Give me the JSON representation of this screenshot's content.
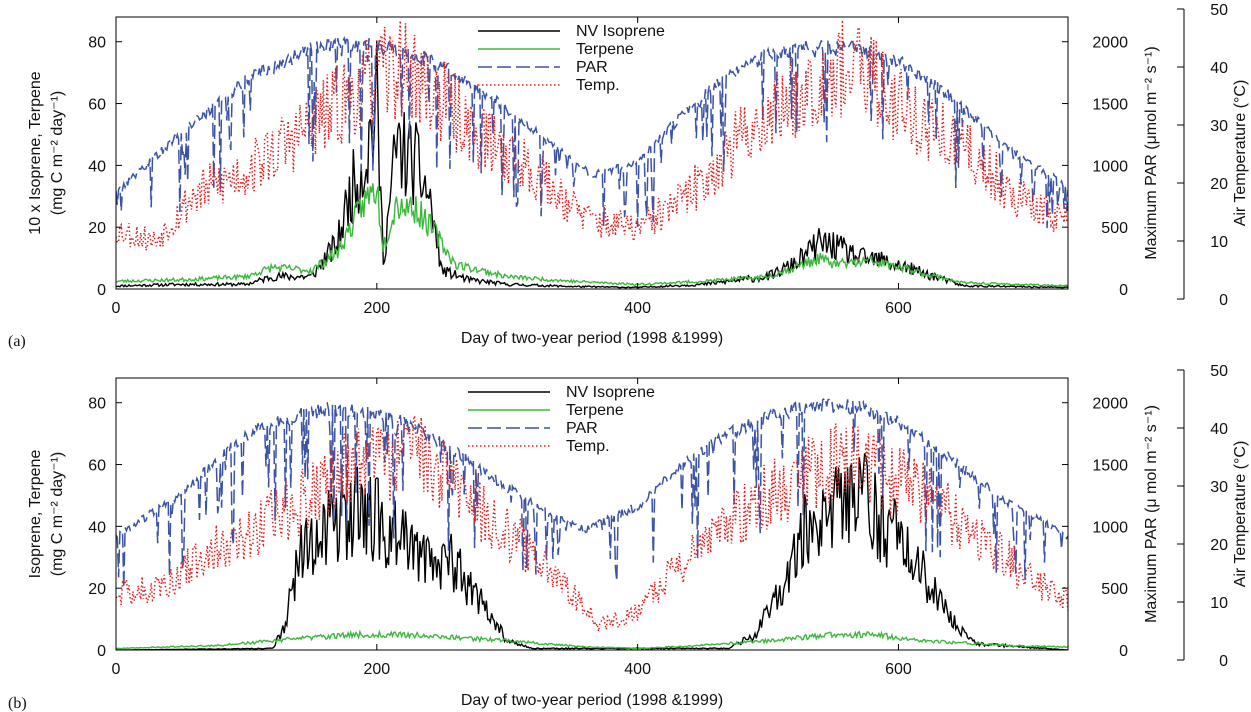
{
  "chart_data": [
    {
      "id": "a",
      "type": "line",
      "panel_label": "(a)",
      "xlabel": "Day of two-year period (1998 &1999)",
      "xlim": [
        0,
        730
      ],
      "xticks": [
        0,
        200,
        400,
        600
      ],
      "ylabel_lines": [
        "10 x Isoprene, Terpene",
        "(mg C m⁻² day⁻¹)"
      ],
      "ylim": [
        0,
        88
      ],
      "yticks": [
        0,
        20,
        40,
        60,
        80
      ],
      "y2label": "Maximum PAR (μmol m⁻² s⁻¹)",
      "y2lim": [
        0,
        2200
      ],
      "y2ticks": [
        0,
        500,
        1000,
        1500,
        2000
      ],
      "y3label": "Air Temperature (°C)",
      "y3lim": [
        0,
        50
      ],
      "y3ticks": [
        0,
        10,
        20,
        30,
        40,
        50
      ],
      "legend_position": "top-center",
      "series": [
        {
          "name": "NV Isoprene",
          "axis": "left",
          "color": "#000000",
          "points": [
            [
              0,
              1
            ],
            [
              50,
              1.5
            ],
            [
              100,
              1.5
            ],
            [
              120,
              4
            ],
            [
              150,
              4
            ],
            [
              170,
              15
            ],
            [
              180,
              32
            ],
            [
              190,
              40
            ],
            [
              200,
              60
            ],
            [
              205,
              10
            ],
            [
              215,
              46
            ],
            [
              230,
              40
            ],
            [
              240,
              30
            ],
            [
              250,
              6
            ],
            [
              270,
              3
            ],
            [
              300,
              1.5
            ],
            [
              350,
              0.8
            ],
            [
              400,
              0.5
            ],
            [
              450,
              1.5
            ],
            [
              500,
              4
            ],
            [
              520,
              8
            ],
            [
              540,
              15
            ],
            [
              550,
              14
            ],
            [
              570,
              10
            ],
            [
              590,
              9
            ],
            [
              620,
              5
            ],
            [
              650,
              1
            ],
            [
              730,
              0.5
            ]
          ]
        },
        {
          "name": "Terpene",
          "axis": "left",
          "color": "#3cb83c",
          "points": [
            [
              0,
              2.5
            ],
            [
              50,
              3
            ],
            [
              100,
              4
            ],
            [
              120,
              7
            ],
            [
              150,
              6
            ],
            [
              170,
              12
            ],
            [
              190,
              28
            ],
            [
              200,
              33
            ],
            [
              205,
              14
            ],
            [
              215,
              28
            ],
            [
              230,
              26
            ],
            [
              245,
              18
            ],
            [
              260,
              8
            ],
            [
              300,
              4
            ],
            [
              350,
              2.5
            ],
            [
              400,
              1.5
            ],
            [
              450,
              2.5
            ],
            [
              500,
              4
            ],
            [
              520,
              7
            ],
            [
              540,
              10
            ],
            [
              550,
              8
            ],
            [
              580,
              9
            ],
            [
              620,
              5
            ],
            [
              650,
              2
            ],
            [
              730,
              1
            ]
          ]
        },
        {
          "name": "PAR",
          "axis": "right",
          "color": "#3a53a4",
          "points": [
            [
              0,
              800
            ],
            [
              50,
              1300
            ],
            [
              100,
              1750
            ],
            [
              150,
              2000
            ],
            [
              180,
              2050
            ],
            [
              200,
              2030
            ],
            [
              230,
              1950
            ],
            [
              260,
              1800
            ],
            [
              300,
              1500
            ],
            [
              340,
              1150
            ],
            [
              365,
              950
            ],
            [
              400,
              1050
            ],
            [
              430,
              1400
            ],
            [
              460,
              1700
            ],
            [
              500,
              1950
            ],
            [
              540,
              2030
            ],
            [
              570,
              2000
            ],
            [
              600,
              1900
            ],
            [
              640,
              1600
            ],
            [
              680,
              1200
            ],
            [
              730,
              850
            ]
          ]
        },
        {
          "name": "Temp.",
          "axis": "right2",
          "color": "#e02020",
          "points": [
            [
              0,
              12
            ],
            [
              30,
              10
            ],
            [
              60,
              18
            ],
            [
              100,
              22
            ],
            [
              150,
              30
            ],
            [
              180,
              35
            ],
            [
              200,
              38
            ],
            [
              220,
              40
            ],
            [
              250,
              34
            ],
            [
              280,
              28
            ],
            [
              320,
              22
            ],
            [
              360,
              14
            ],
            [
              400,
              12
            ],
            [
              440,
              18
            ],
            [
              480,
              28
            ],
            [
              520,
              35
            ],
            [
              550,
              40
            ],
            [
              580,
              38
            ],
            [
              620,
              30
            ],
            [
              660,
              24
            ],
            [
              700,
              16
            ],
            [
              730,
              14
            ]
          ]
        }
      ]
    },
    {
      "id": "b",
      "type": "line",
      "panel_label": "(b)",
      "xlabel": "Day of two-year period (1998 &1999)",
      "xlim": [
        0,
        730
      ],
      "xticks": [
        0,
        200,
        400,
        600
      ],
      "ylabel_lines": [
        "Isoprene, Terpene",
        "(mg C m⁻² day⁻¹)"
      ],
      "ylim": [
        0,
        88
      ],
      "yticks": [
        0,
        20,
        40,
        60,
        80
      ],
      "y2label": "Maximum PAR (μ mol m⁻² s⁻¹)",
      "y2lim": [
        0,
        2200
      ],
      "y2ticks": [
        0,
        500,
        1000,
        1500,
        2000
      ],
      "y3label": "Air Temperature (°C)",
      "y3lim": [
        0,
        50
      ],
      "y3ticks": [
        0,
        10,
        20,
        30,
        40,
        50
      ],
      "legend_position": "top-center",
      "series": [
        {
          "name": "NV Isoprene",
          "axis": "left",
          "color": "#000000",
          "points": [
            [
              0,
              0
            ],
            [
              120,
              0.5
            ],
            [
              130,
              8
            ],
            [
              140,
              30
            ],
            [
              160,
              40
            ],
            [
              180,
              45
            ],
            [
              200,
              42
            ],
            [
              220,
              35
            ],
            [
              240,
              30
            ],
            [
              260,
              28
            ],
            [
              280,
              15
            ],
            [
              300,
              3
            ],
            [
              320,
              0.5
            ],
            [
              470,
              0.5
            ],
            [
              490,
              5
            ],
            [
              510,
              20
            ],
            [
              530,
              40
            ],
            [
              550,
              45
            ],
            [
              570,
              50
            ],
            [
              590,
              40
            ],
            [
              610,
              30
            ],
            [
              640,
              10
            ],
            [
              660,
              2
            ],
            [
              730,
              0
            ]
          ]
        },
        {
          "name": "Terpene",
          "axis": "left",
          "color": "#3cb83c",
          "points": [
            [
              0,
              0.5
            ],
            [
              80,
              1.5
            ],
            [
              120,
              3
            ],
            [
              180,
              5
            ],
            [
              220,
              5
            ],
            [
              260,
              4
            ],
            [
              300,
              3
            ],
            [
              360,
              1
            ],
            [
              400,
              0.5
            ],
            [
              450,
              1.5
            ],
            [
              500,
              3
            ],
            [
              550,
              5
            ],
            [
              580,
              5
            ],
            [
              620,
              3
            ],
            [
              680,
              1.5
            ],
            [
              730,
              1
            ]
          ]
        },
        {
          "name": "PAR",
          "axis": "right",
          "color": "#3a53a4",
          "points": [
            [
              0,
              950
            ],
            [
              50,
              1300
            ],
            [
              100,
              1800
            ],
            [
              150,
              2000
            ],
            [
              180,
              2000
            ],
            [
              200,
              1980
            ],
            [
              230,
              1850
            ],
            [
              260,
              1650
            ],
            [
              300,
              1350
            ],
            [
              340,
              1100
            ],
            [
              360,
              1000
            ],
            [
              400,
              1200
            ],
            [
              430,
              1500
            ],
            [
              460,
              1750
            ],
            [
              500,
              1950
            ],
            [
              540,
              2050
            ],
            [
              570,
              2020
            ],
            [
              600,
              1900
            ],
            [
              640,
              1600
            ],
            [
              680,
              1250
            ],
            [
              730,
              950
            ]
          ]
        },
        {
          "name": "Temp.",
          "axis": "right2",
          "color": "#e02020",
          "points": [
            [
              0,
              12
            ],
            [
              30,
              12
            ],
            [
              60,
              17
            ],
            [
              100,
              22
            ],
            [
              150,
              28
            ],
            [
              180,
              33
            ],
            [
              200,
              34
            ],
            [
              230,
              35
            ],
            [
              260,
              30
            ],
            [
              300,
              22
            ],
            [
              340,
              14
            ],
            [
              370,
              6
            ],
            [
              400,
              8
            ],
            [
              430,
              16
            ],
            [
              470,
              24
            ],
            [
              510,
              30
            ],
            [
              550,
              34
            ],
            [
              580,
              33
            ],
            [
              620,
              28
            ],
            [
              660,
              22
            ],
            [
              700,
              14
            ],
            [
              730,
              10
            ]
          ]
        }
      ]
    }
  ]
}
